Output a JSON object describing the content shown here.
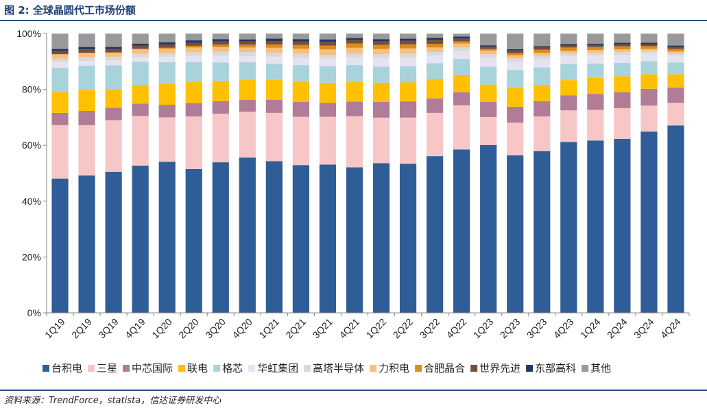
{
  "figure": {
    "title": "图 2:  全球晶圆代工市场份额",
    "source": "资料来源：TrendForce，statista，信达证券研发中心"
  },
  "chart_data": {
    "type": "bar",
    "stacked": true,
    "ylim": [
      0,
      100
    ],
    "yticks": [
      "0%",
      "20%",
      "40%",
      "60%",
      "80%",
      "100%"
    ],
    "grid": false,
    "legend_position": "bottom",
    "categories": [
      "1Q19",
      "2Q19",
      "3Q19",
      "4Q19",
      "1Q20",
      "2Q20",
      "3Q20",
      "4Q20",
      "1Q21",
      "2Q21",
      "3Q21",
      "4Q21",
      "1Q22",
      "2Q22",
      "3Q22",
      "4Q22",
      "1Q23",
      "2Q23",
      "3Q23",
      "4Q23",
      "1Q24",
      "2Q24",
      "3Q24",
      "4Q24"
    ],
    "series": [
      {
        "name": "台积电",
        "color": "#2f5d97",
        "values": [
          48.1,
          49.2,
          50.5,
          52.7,
          54.1,
          51.5,
          53.9,
          55.6,
          54.3,
          52.9,
          53.1,
          52.1,
          53.6,
          53.4,
          56.1,
          58.5,
          60.1,
          56.4,
          57.9,
          61.2,
          61.7,
          62.3,
          64.9,
          67.1
        ]
      },
      {
        "name": "三星",
        "color": "#f7c6c7",
        "values": [
          19.1,
          18.0,
          18.5,
          17.8,
          15.9,
          18.8,
          17.4,
          16.4,
          17.3,
          17.3,
          17.1,
          18.3,
          16.3,
          16.5,
          15.5,
          15.8,
          10.0,
          11.7,
          12.4,
          11.3,
          11.0,
          11.0,
          9.3,
          8.1
        ]
      },
      {
        "name": "中芯国际",
        "color": "#b07c97",
        "values": [
          4.4,
          5.1,
          4.4,
          4.4,
          4.5,
          4.8,
          4.5,
          4.3,
          4.7,
          5.3,
          5.0,
          5.2,
          5.6,
          5.8,
          5.2,
          4.7,
          5.4,
          5.7,
          5.5,
          5.4,
          5.7,
          5.7,
          6.0,
          5.5
        ]
      },
      {
        "name": "联电",
        "color": "#ffc000",
        "values": [
          7.5,
          7.5,
          6.7,
          6.7,
          7.5,
          7.6,
          7.2,
          7.2,
          7.1,
          7.3,
          7.2,
          7.1,
          6.9,
          6.8,
          6.9,
          6.1,
          6.2,
          6.7,
          5.8,
          5.4,
          5.7,
          5.7,
          5.2,
          4.7
        ]
      },
      {
        "name": "格芯",
        "color": "#a8d3db",
        "values": [
          8.6,
          8.7,
          8.5,
          8.3,
          7.7,
          7.1,
          6.6,
          6.2,
          5.7,
          5.9,
          5.9,
          6.0,
          5.8,
          5.8,
          5.7,
          5.8,
          6.5,
          6.4,
          6.3,
          5.8,
          5.2,
          4.8,
          4.7,
          4.2
        ]
      },
      {
        "name": "华虹集团",
        "color": "#e6e3f1",
        "values": [
          2.0,
          1.6,
          1.8,
          1.6,
          2.0,
          2.2,
          2.4,
          2.2,
          2.6,
          2.6,
          2.7,
          2.8,
          3.1,
          3.2,
          2.7,
          2.8,
          3.2,
          3.0,
          2.9,
          2.7,
          2.8,
          2.9,
          2.8,
          2.5
        ]
      },
      {
        "name": "高塔半导体",
        "color": "#d9d9d9",
        "values": [
          1.3,
          1.4,
          1.3,
          1.4,
          1.2,
          1.3,
          1.5,
          1.5,
          1.4,
          1.4,
          1.4,
          1.4,
          1.3,
          1.3,
          1.3,
          1.3,
          1.2,
          1.2,
          1.2,
          1.0,
          1.0,
          1.0,
          0.9,
          0.8
        ]
      },
      {
        "name": "力积电",
        "color": "#f8bf7d",
        "values": [
          1.6,
          1.6,
          1.5,
          1.6,
          1.7,
          1.7,
          1.6,
          1.6,
          1.8,
          1.9,
          1.9,
          2.0,
          1.9,
          1.9,
          1.6,
          1.4,
          1.3,
          1.1,
          1.1,
          1.0,
          1.0,
          0.9,
          0.7,
          0.7
        ]
      },
      {
        "name": "合肥晶合",
        "color": "#d98c1f",
        "values": [
          0.0,
          0.0,
          0.0,
          0.0,
          0.3,
          0.6,
          0.9,
          1.0,
          1.2,
          1.3,
          1.4,
          1.5,
          1.4,
          1.4,
          1.3,
          0.8,
          0.6,
          0.8,
          1.1,
          1.2,
          1.1,
          1.1,
          1.0,
          0.9
        ]
      },
      {
        "name": "世界先进",
        "color": "#7b4d3a",
        "values": [
          1.1,
          1.2,
          1.2,
          1.2,
          1.2,
          1.1,
          1.1,
          1.1,
          1.2,
          1.2,
          1.3,
          1.2,
          1.3,
          1.3,
          1.4,
          1.0,
          0.8,
          0.9,
          0.8,
          0.7,
          0.7,
          0.8,
          0.7,
          0.7
        ]
      },
      {
        "name": "东部高科",
        "color": "#203864",
        "values": [
          0.8,
          0.9,
          0.8,
          0.7,
          0.8,
          0.9,
          0.9,
          0.8,
          0.9,
          0.9,
          0.9,
          0.8,
          0.8,
          0.8,
          0.8,
          0.7,
          0.5,
          0.5,
          0.5,
          0.5,
          0.5,
          0.5,
          0.5,
          0.5
        ]
      },
      {
        "name": "其他",
        "color": "#999999",
        "values": [
          5.5,
          4.8,
          4.8,
          3.6,
          3.1,
          2.4,
          2.0,
          2.1,
          1.8,
          2.0,
          2.1,
          1.6,
          2.0,
          1.8,
          1.5,
          1.1,
          4.2,
          5.6,
          4.5,
          4.8,
          3.6,
          3.3,
          3.3,
          4.3
        ]
      }
    ]
  }
}
